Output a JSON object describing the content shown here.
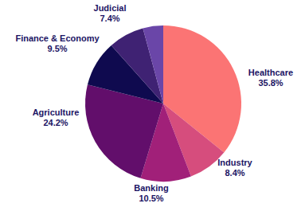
{
  "chart_data": {
    "type": "pie",
    "categories": [
      "Healthcare",
      "Industry",
      "Banking",
      "Agriculture",
      "Finance & Economy",
      "Judicial",
      null
    ],
    "values": [
      35.8,
      8.4,
      10.5,
      24.2,
      9.5,
      7.4,
      4.2
    ],
    "value_labels": [
      "35.8%",
      "8.4%",
      "10.5%",
      "24.2%",
      "9.5%",
      "7.4%",
      null
    ],
    "colors": [
      "#fb7474",
      "#d64d7d",
      "#a12079",
      "#620e6b",
      "#0f0a4f",
      "#3f2273",
      "#6a46a8"
    ],
    "data_labels": true
  }
}
